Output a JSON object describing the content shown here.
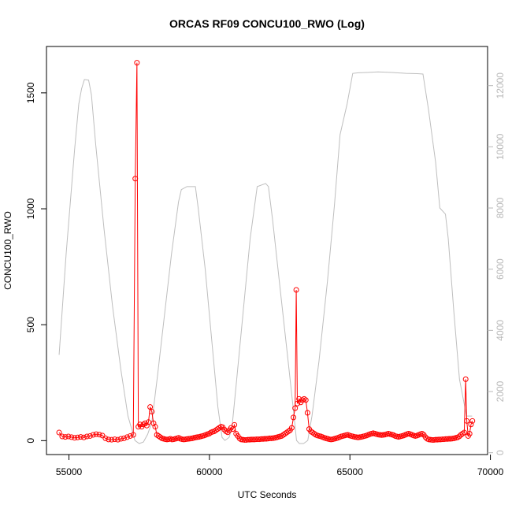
{
  "chart_data": {
    "type": "line",
    "title": "ORCAS RF09 CONCU100_RWO (Log)",
    "xlabel": "UTC Seconds",
    "ylabel": "CONCU100_RWO",
    "xlim": [
      54200,
      69900
    ],
    "ylim": [
      -60,
      1700
    ],
    "y2lim": [
      -60,
      13280
    ],
    "x_ticks": [
      55000,
      60000,
      65000,
      70000
    ],
    "y_ticks": [
      0,
      500,
      1000,
      1500
    ],
    "y2_ticks": [
      0,
      2000,
      4000,
      6000,
      8000,
      10000,
      12000
    ],
    "grid": false,
    "colors": {
      "primary": "#ff0000",
      "secondary": "#bebebe"
    },
    "series": [
      {
        "axis": "left",
        "style": "line+open-circles",
        "color": "#ff0000",
        "points": [
          [
            54650,
            35
          ],
          [
            54760,
            18
          ],
          [
            54870,
            16
          ],
          [
            54980,
            18
          ],
          [
            55090,
            15
          ],
          [
            55200,
            12
          ],
          [
            55310,
            14
          ],
          [
            55420,
            16
          ],
          [
            55530,
            14
          ],
          [
            55640,
            18
          ],
          [
            55750,
            20
          ],
          [
            55860,
            25
          ],
          [
            55970,
            28
          ],
          [
            56080,
            26
          ],
          [
            56190,
            22
          ],
          [
            56300,
            10
          ],
          [
            56410,
            5
          ],
          [
            56520,
            4
          ],
          [
            56630,
            6
          ],
          [
            56740,
            4
          ],
          [
            56850,
            8
          ],
          [
            56960,
            10
          ],
          [
            57070,
            15
          ],
          [
            57180,
            20
          ],
          [
            57290,
            25
          ],
          [
            57360,
            1130
          ],
          [
            57420,
            1630
          ],
          [
            57470,
            60
          ],
          [
            57530,
            70
          ],
          [
            57590,
            60
          ],
          [
            57650,
            70
          ],
          [
            57710,
            75
          ],
          [
            57770,
            65
          ],
          [
            57830,
            80
          ],
          [
            57890,
            145
          ],
          [
            57950,
            125
          ],
          [
            58010,
            75
          ],
          [
            58070,
            60
          ],
          [
            58130,
            25
          ],
          [
            58190,
            20
          ],
          [
            58250,
            15
          ],
          [
            58310,
            10
          ],
          [
            58370,
            8
          ],
          [
            58430,
            6
          ],
          [
            58490,
            5
          ],
          [
            58550,
            6
          ],
          [
            58610,
            8
          ],
          [
            58670,
            5
          ],
          [
            58730,
            6
          ],
          [
            58790,
            8
          ],
          [
            58850,
            10
          ],
          [
            58910,
            12
          ],
          [
            58970,
            8
          ],
          [
            59030,
            6
          ],
          [
            59090,
            5
          ],
          [
            59150,
            6
          ],
          [
            59210,
            7
          ],
          [
            59270,
            8
          ],
          [
            59330,
            9
          ],
          [
            59390,
            10
          ],
          [
            59450,
            12
          ],
          [
            59510,
            14
          ],
          [
            59570,
            15
          ],
          [
            59630,
            16
          ],
          [
            59690,
            18
          ],
          [
            59750,
            20
          ],
          [
            59810,
            22
          ],
          [
            59870,
            25
          ],
          [
            59930,
            28
          ],
          [
            59990,
            30
          ],
          [
            60050,
            35
          ],
          [
            60110,
            38
          ],
          [
            60170,
            40
          ],
          [
            60230,
            45
          ],
          [
            60290,
            50
          ],
          [
            60350,
            55
          ],
          [
            60410,
            60
          ],
          [
            60470,
            58
          ],
          [
            60530,
            48
          ],
          [
            60590,
            40
          ],
          [
            60650,
            36
          ],
          [
            60710,
            45
          ],
          [
            60770,
            55
          ],
          [
            60830,
            50
          ],
          [
            60890,
            68
          ],
          [
            60950,
            30
          ],
          [
            61010,
            20
          ],
          [
            61070,
            10
          ],
          [
            61130,
            5
          ],
          [
            61190,
            4
          ],
          [
            61250,
            3
          ],
          [
            61310,
            3
          ],
          [
            61370,
            4
          ],
          [
            61430,
            4
          ],
          [
            61490,
            5
          ],
          [
            61550,
            5
          ],
          [
            61610,
            5
          ],
          [
            61670,
            6
          ],
          [
            61730,
            6
          ],
          [
            61790,
            6
          ],
          [
            61850,
            7
          ],
          [
            61910,
            7
          ],
          [
            61970,
            8
          ],
          [
            62030,
            8
          ],
          [
            62090,
            9
          ],
          [
            62150,
            10
          ],
          [
            62210,
            10
          ],
          [
            62270,
            11
          ],
          [
            62330,
            12
          ],
          [
            62390,
            14
          ],
          [
            62450,
            16
          ],
          [
            62510,
            18
          ],
          [
            62570,
            20
          ],
          [
            62630,
            25
          ],
          [
            62690,
            30
          ],
          [
            62750,
            35
          ],
          [
            62810,
            40
          ],
          [
            62870,
            45
          ],
          [
            62930,
            55
          ],
          [
            62990,
            100
          ],
          [
            63050,
            140
          ],
          [
            63090,
            650
          ],
          [
            63130,
            160
          ],
          [
            63190,
            180
          ],
          [
            63250,
            165
          ],
          [
            63310,
            175
          ],
          [
            63370,
            180
          ],
          [
            63430,
            175
          ],
          [
            63490,
            120
          ],
          [
            63550,
            50
          ],
          [
            63610,
            40
          ],
          [
            63670,
            35
          ],
          [
            63730,
            30
          ],
          [
            63790,
            25
          ],
          [
            63850,
            22
          ],
          [
            63910,
            20
          ],
          [
            63970,
            18
          ],
          [
            64030,
            15
          ],
          [
            64090,
            12
          ],
          [
            64150,
            10
          ],
          [
            64210,
            8
          ],
          [
            64270,
            6
          ],
          [
            64330,
            5
          ],
          [
            64390,
            6
          ],
          [
            64450,
            8
          ],
          [
            64510,
            10
          ],
          [
            64570,
            12
          ],
          [
            64630,
            15
          ],
          [
            64690,
            18
          ],
          [
            64750,
            20
          ],
          [
            64810,
            22
          ],
          [
            64870,
            24
          ],
          [
            64930,
            25
          ],
          [
            64990,
            22
          ],
          [
            65050,
            20
          ],
          [
            65110,
            18
          ],
          [
            65170,
            16
          ],
          [
            65230,
            15
          ],
          [
            65290,
            14
          ],
          [
            65350,
            15
          ],
          [
            65410,
            16
          ],
          [
            65470,
            18
          ],
          [
            65530,
            20
          ],
          [
            65590,
            22
          ],
          [
            65650,
            25
          ],
          [
            65710,
            28
          ],
          [
            65770,
            30
          ],
          [
            65830,
            32
          ],
          [
            65890,
            30
          ],
          [
            65950,
            28
          ],
          [
            66010,
            26
          ],
          [
            66070,
            25
          ],
          [
            66130,
            24
          ],
          [
            66190,
            25
          ],
          [
            66250,
            26
          ],
          [
            66310,
            28
          ],
          [
            66370,
            30
          ],
          [
            66430,
            28
          ],
          [
            66490,
            26
          ],
          [
            66550,
            24
          ],
          [
            66610,
            20
          ],
          [
            66670,
            18
          ],
          [
            66730,
            16
          ],
          [
            66790,
            18
          ],
          [
            66850,
            20
          ],
          [
            66910,
            22
          ],
          [
            66970,
            25
          ],
          [
            67030,
            28
          ],
          [
            67090,
            30
          ],
          [
            67150,
            28
          ],
          [
            67210,
            25
          ],
          [
            67270,
            22
          ],
          [
            67330,
            20
          ],
          [
            67390,
            22
          ],
          [
            67450,
            25
          ],
          [
            67510,
            28
          ],
          [
            67570,
            30
          ],
          [
            67630,
            25
          ],
          [
            67690,
            15
          ],
          [
            67750,
            8
          ],
          [
            67810,
            5
          ],
          [
            67870,
            4
          ],
          [
            67930,
            3
          ],
          [
            67990,
            3
          ],
          [
            68050,
            4
          ],
          [
            68110,
            4
          ],
          [
            68170,
            5
          ],
          [
            68230,
            5
          ],
          [
            68290,
            6
          ],
          [
            68350,
            6
          ],
          [
            68410,
            7
          ],
          [
            68470,
            7
          ],
          [
            68530,
            8
          ],
          [
            68590,
            8
          ],
          [
            68650,
            9
          ],
          [
            68710,
            10
          ],
          [
            68770,
            12
          ],
          [
            68830,
            14
          ],
          [
            68890,
            18
          ],
          [
            68950,
            25
          ],
          [
            69010,
            30
          ],
          [
            69070,
            35
          ],
          [
            69120,
            265
          ],
          [
            69160,
            85
          ],
          [
            69210,
            20
          ],
          [
            69260,
            30
          ],
          [
            69310,
            70
          ],
          [
            69360,
            85
          ]
        ]
      },
      {
        "axis": "right",
        "style": "line",
        "color": "#bebebe",
        "points": [
          [
            54650,
            3200
          ],
          [
            54900,
            6500
          ],
          [
            55200,
            9900
          ],
          [
            55350,
            11400
          ],
          [
            55450,
            11900
          ],
          [
            55550,
            12200
          ],
          [
            55700,
            12180
          ],
          [
            55800,
            11700
          ],
          [
            55950,
            10100
          ],
          [
            56250,
            7300
          ],
          [
            56550,
            4800
          ],
          [
            56850,
            2700
          ],
          [
            57100,
            1200
          ],
          [
            57350,
            400
          ],
          [
            57500,
            300
          ],
          [
            57650,
            350
          ],
          [
            57800,
            600
          ],
          [
            57950,
            1000
          ],
          [
            58150,
            2500
          ],
          [
            58400,
            4500
          ],
          [
            58650,
            6500
          ],
          [
            58900,
            8200
          ],
          [
            59000,
            8600
          ],
          [
            59200,
            8700
          ],
          [
            59500,
            8700
          ],
          [
            59600,
            8000
          ],
          [
            59850,
            6000
          ],
          [
            60100,
            3500
          ],
          [
            60300,
            1500
          ],
          [
            60450,
            500
          ],
          [
            60550,
            400
          ],
          [
            60700,
            500
          ],
          [
            60800,
            800
          ],
          [
            60950,
            2200
          ],
          [
            61200,
            4600
          ],
          [
            61450,
            7000
          ],
          [
            61700,
            8700
          ],
          [
            62000,
            8800
          ],
          [
            62100,
            8700
          ],
          [
            62250,
            7600
          ],
          [
            62500,
            5500
          ],
          [
            62800,
            3000
          ],
          [
            63000,
            1300
          ],
          [
            63100,
            400
          ],
          [
            63200,
            300
          ],
          [
            63350,
            300
          ],
          [
            63500,
            400
          ],
          [
            63650,
            1200
          ],
          [
            63900,
            3000
          ],
          [
            64200,
            5600
          ],
          [
            64450,
            8100
          ],
          [
            64650,
            10400
          ],
          [
            64900,
            11400
          ],
          [
            65100,
            12400
          ],
          [
            65300,
            12420
          ],
          [
            65600,
            12430
          ],
          [
            66000,
            12450
          ],
          [
            66500,
            12430
          ],
          [
            67000,
            12400
          ],
          [
            67400,
            12390
          ],
          [
            67600,
            12380
          ],
          [
            67800,
            11200
          ],
          [
            68050,
            9500
          ],
          [
            68200,
            8000
          ],
          [
            68400,
            7800
          ],
          [
            68500,
            7000
          ],
          [
            68700,
            4600
          ],
          [
            68900,
            2400
          ],
          [
            69150,
            1200
          ],
          [
            69350,
            1200
          ]
        ]
      }
    ]
  }
}
